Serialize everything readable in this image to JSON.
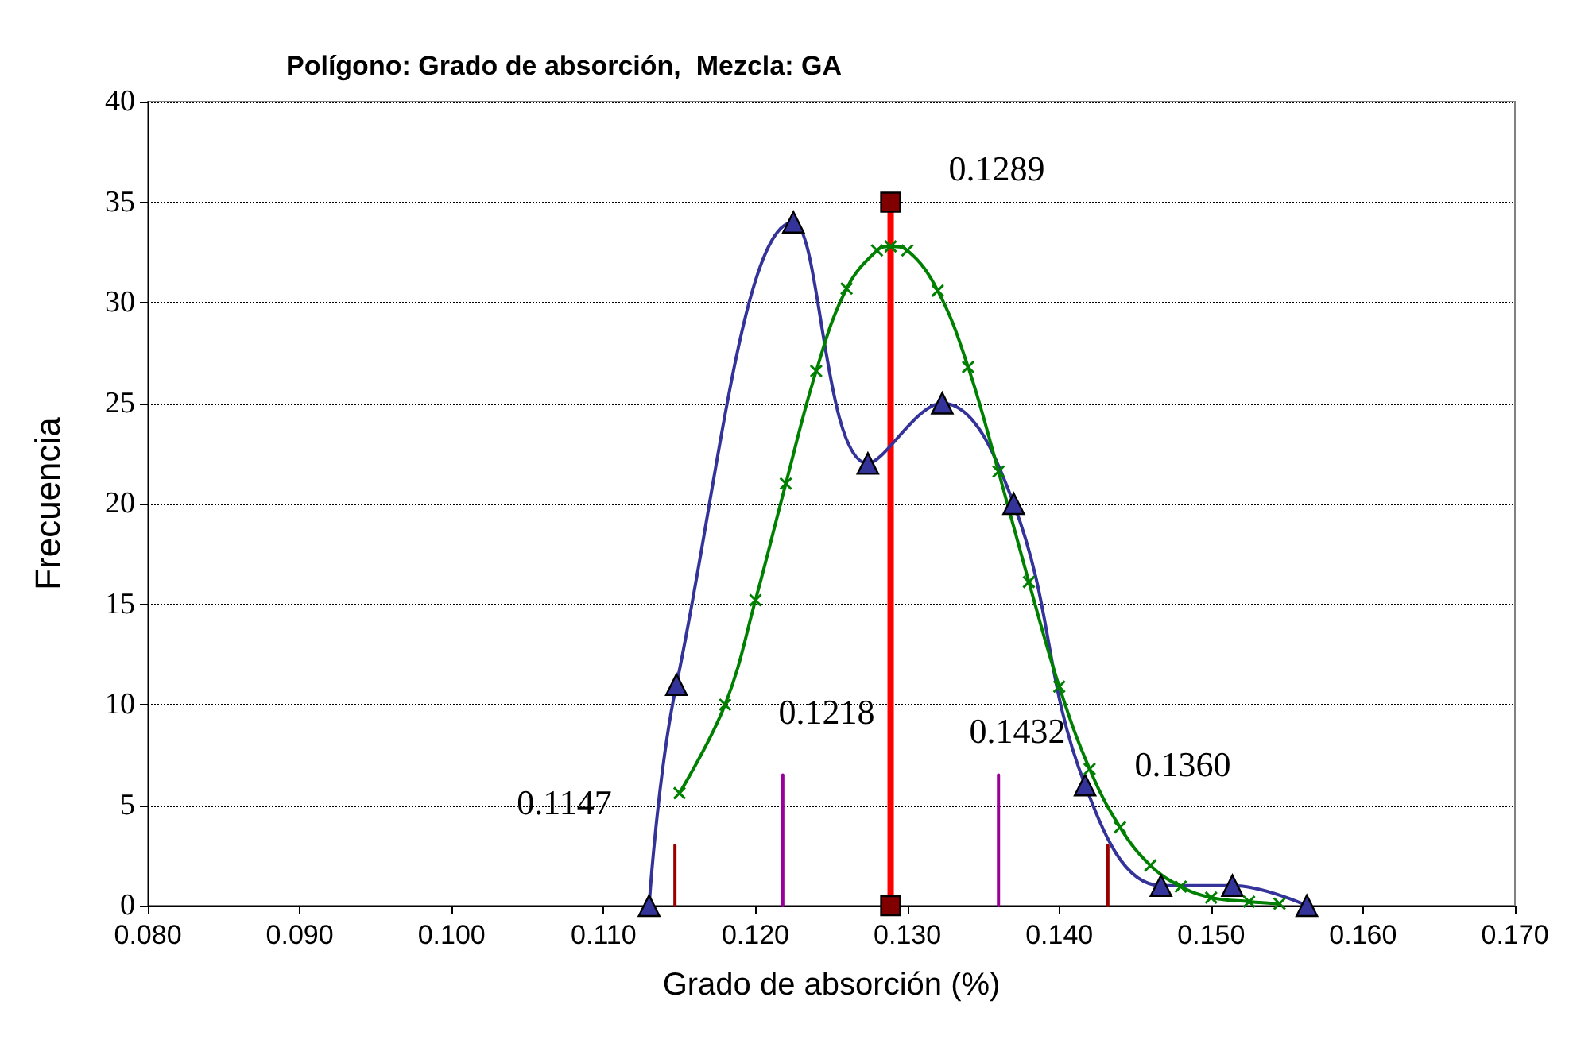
{
  "chart_data": {
    "type": "line",
    "title": "Polígono: Grado de absorción,  Mezcla: GA",
    "xlabel": "Grado de absorción (%)",
    "ylabel": "Frecuencia",
    "xlim": [
      0.08,
      0.17
    ],
    "xticks": [
      {
        "value": 0.08,
        "label": "0.080"
      },
      {
        "value": 0.09,
        "label": "0.090"
      },
      {
        "value": 0.1,
        "label": "0.100"
      },
      {
        "value": 0.11,
        "label": "0.110"
      },
      {
        "value": 0.12,
        "label": "0.120"
      },
      {
        "value": 0.13,
        "label": "0.130"
      },
      {
        "value": 0.14,
        "label": "0.140"
      },
      {
        "value": 0.15,
        "label": "0.150"
      },
      {
        "value": 0.16,
        "label": "0.160"
      },
      {
        "value": 0.17,
        "label": "0.170"
      }
    ],
    "ylim": [
      0,
      40
    ],
    "yticks": [
      0,
      5,
      10,
      15,
      20,
      25,
      30,
      35,
      40
    ],
    "grid": "y",
    "line_style": "solid",
    "series": [
      {
        "color": "#333399",
        "marker": "triangle",
        "x": [
          0.113,
          0.1148,
          0.1225,
          0.1274,
          0.1323,
          0.137,
          0.1417,
          0.1467,
          0.1514,
          0.1563
        ],
        "values": [
          0,
          11,
          34,
          22,
          25,
          20,
          6,
          1,
          1,
          0
        ]
      },
      {
        "color": "#008000",
        "marker": "cross",
        "x": [
          0.115,
          0.118,
          0.12,
          0.122,
          0.124,
          0.126,
          0.128,
          0.1289,
          0.13,
          0.132,
          0.134,
          0.136,
          0.138,
          0.14,
          0.142,
          0.144,
          0.146,
          0.148,
          0.15,
          0.1525,
          0.1545
        ],
        "values": [
          5.6,
          10,
          15.2,
          21,
          26.6,
          30.7,
          32.6,
          32.8,
          32.6,
          30.6,
          26.8,
          21.6,
          16.1,
          10.9,
          6.8,
          3.9,
          2,
          0.95,
          0.4,
          0.2,
          0.1
        ]
      },
      {
        "color": "#ff0000",
        "marker": "square",
        "x": [
          0.1289,
          0.1289
        ],
        "values": [
          0,
          35
        ]
      },
      {
        "color": "#990000",
        "marker": "none",
        "x": [
          0.1147,
          0.1147
        ],
        "values": [
          0,
          3
        ]
      },
      {
        "color": "#990000",
        "marker": "none",
        "x": [
          0.1432,
          0.1432
        ],
        "values": [
          0,
          3
        ]
      },
      {
        "color": "#990099",
        "marker": "none",
        "x": [
          0.1218,
          0.1218
        ],
        "values": [
          0,
          6.5
        ]
      },
      {
        "color": "#990099",
        "marker": "none",
        "x": [
          0.136,
          0.136
        ],
        "values": [
          0,
          6.5
        ]
      }
    ],
    "annotations": [
      "0.1289",
      "0.1147",
      "0.1218",
      "0.1432",
      "0.1360"
    ]
  }
}
